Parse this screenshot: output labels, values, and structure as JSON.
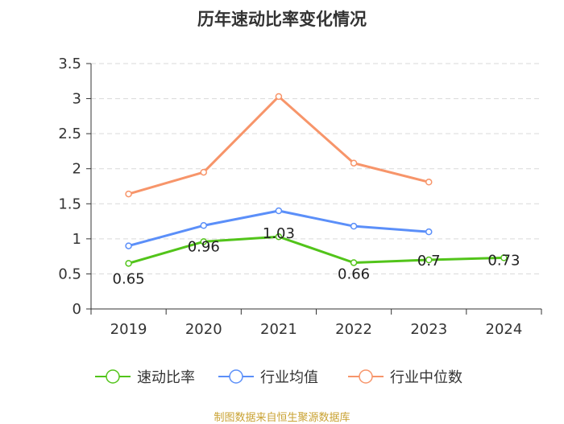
{
  "chart_data": {
    "type": "line",
    "title": "历年速动比率变化情况",
    "categories": [
      "2019",
      "2020",
      "2021",
      "2022",
      "2023",
      "2024"
    ],
    "ylim": [
      0,
      3.5
    ],
    "yticks": [
      "0",
      "0.5",
      "1",
      "1.5",
      "2",
      "2.5",
      "3",
      "3.5"
    ],
    "grid": true,
    "legend_position": "bottom",
    "series": [
      {
        "name": "速动比率",
        "color": "#52c41a",
        "values": [
          0.65,
          0.96,
          1.03,
          0.66,
          0.7,
          0.73
        ],
        "labels": [
          "0.65",
          "0.96",
          "1.03",
          "0.66",
          "0.7",
          "0.73"
        ]
      },
      {
        "name": "行业均值",
        "color": "#5b8ff9",
        "values": [
          0.9,
          1.19,
          1.4,
          1.18,
          1.1,
          null
        ]
      },
      {
        "name": "行业中位数",
        "color": "#f7956a",
        "values": [
          1.64,
          1.95,
          3.03,
          2.08,
          1.81,
          null
        ]
      }
    ]
  },
  "source": "制图数据来自恒生聚源数据库"
}
